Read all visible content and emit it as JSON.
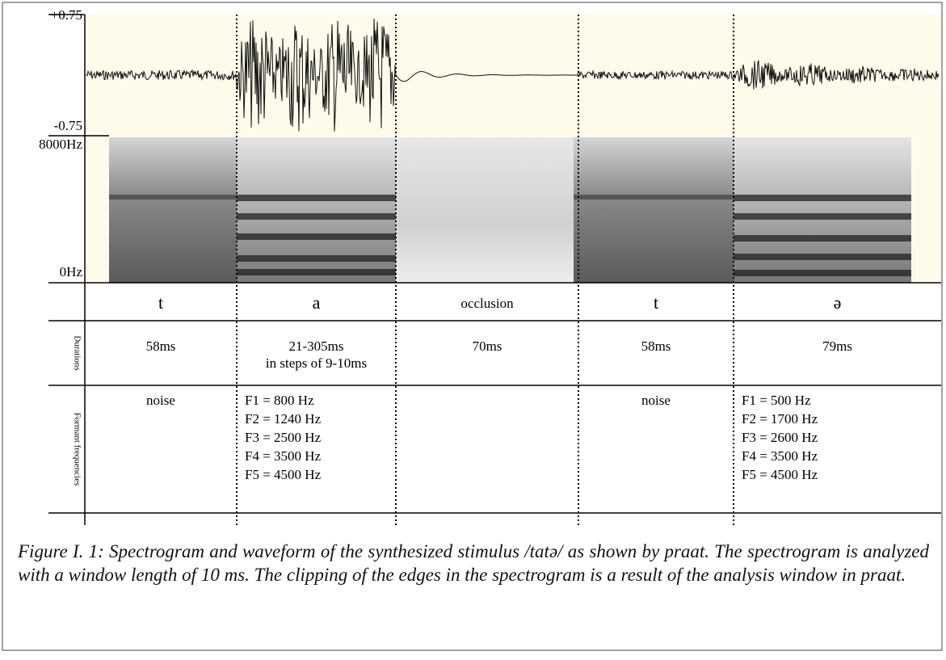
{
  "axis": {
    "amplitude_top": "+0.75",
    "amplitude_bottom": "-0.75",
    "frequency_top": "8000Hz",
    "frequency_bottom": "0Hz"
  },
  "row_labels": {
    "durations": "Durations",
    "formants": "Formant frequencies"
  },
  "segments": [
    {
      "label": "t",
      "duration": [
        "58ms"
      ],
      "formants": [
        "noise"
      ]
    },
    {
      "label": "a",
      "duration": [
        "21-305ms",
        "in steps of 9-10ms"
      ],
      "formants": [
        "F1 = 800 Hz",
        "F2 = 1240 Hz",
        "F3 = 2500 Hz",
        "F4 = 3500 Hz",
        "F5 = 4500 Hz"
      ]
    },
    {
      "label": "occlusion",
      "duration": [
        "70ms"
      ],
      "formants": []
    },
    {
      "label": "t",
      "duration": [
        "58ms"
      ],
      "formants": [
        "noise"
      ]
    },
    {
      "label": "ə",
      "duration": [
        "79ms"
      ],
      "formants": [
        "F1 = 500 Hz",
        "F2 = 1700 Hz",
        "F3 = 2600 Hz",
        "F4 = 3500 Hz",
        "F5 = 4500 Hz"
      ]
    }
  ],
  "caption": "Figure I. 1: Spectrogram and waveform of the synthesized stimulus /tatə/ as shown by praat. The spectrogram is analyzed with a window length of 10 ms. The clipping of the edges in the spectrogram is a result of the analysis window in praat."
}
